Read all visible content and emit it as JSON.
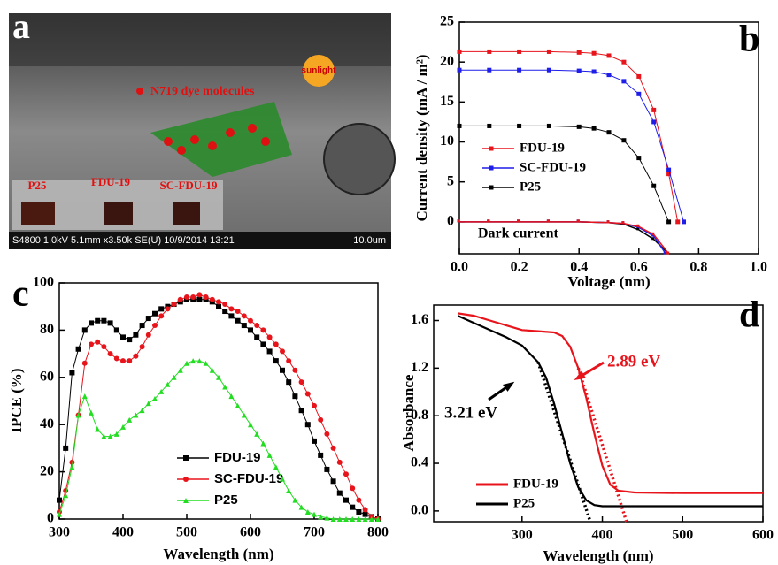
{
  "panel_a": {
    "letter": "a",
    "dye_label": "N719 dye molecules",
    "sun_label": "sunlight",
    "samples": [
      "P25",
      "FDU-19",
      "SC-FDU-19"
    ],
    "footer": "S4800 1.0kV 5.1mm x3.50k SE(U) 10/9/2014 13:21",
    "scale": "10.0um"
  },
  "chart_data": [
    {
      "type": "line",
      "letter": "b",
      "y_label": "Current density (mA / m²)",
      "x_label": "Voltage (nm)",
      "xlim": [
        0,
        1
      ],
      "xticks": [
        {
          "value": 0,
          "label": "0.0"
        },
        0.2,
        0.4,
        0.6,
        0.8,
        {
          "value": 1,
          "label": "1.0"
        }
      ],
      "ylim": [
        -4,
        25
      ],
      "yticks": [
        0,
        5,
        10,
        15,
        20,
        25
      ],
      "series": [
        {
          "name": "FDU-19",
          "color": "#e8141b",
          "marker": "square",
          "x": [
            0,
            0.1,
            0.2,
            0.3,
            0.4,
            0.45,
            0.5,
            0.55,
            0.6,
            0.65,
            0.7,
            0.73
          ],
          "values": [
            21.3,
            21.3,
            21.3,
            21.3,
            21.2,
            21.1,
            20.8,
            20.0,
            18.2,
            14.0,
            6.0,
            0
          ]
        },
        {
          "name": "SC-FDU-19",
          "color": "#1e1ee8",
          "marker": "square",
          "x": [
            0,
            0.1,
            0.2,
            0.3,
            0.4,
            0.45,
            0.5,
            0.55,
            0.6,
            0.65,
            0.7,
            0.75
          ],
          "values": [
            19,
            19,
            19,
            19,
            18.9,
            18.8,
            18.4,
            17.6,
            16.0,
            12.5,
            6.5,
            0
          ]
        },
        {
          "name": "P25",
          "color": "#000000",
          "marker": "square",
          "x": [
            0,
            0.1,
            0.2,
            0.3,
            0.4,
            0.45,
            0.5,
            0.55,
            0.6,
            0.65,
            0.7
          ],
          "values": [
            12,
            12,
            12,
            12,
            11.9,
            11.7,
            11.2,
            10.2,
            8.0,
            4.5,
            0
          ]
        }
      ],
      "dark_curves": [
        {
          "color": "#000000",
          "x": [
            0,
            0.1,
            0.2,
            0.3,
            0.4,
            0.5,
            0.55,
            0.6,
            0.65,
            0.7
          ],
          "values": [
            0,
            0,
            0,
            0,
            0,
            -0.1,
            -0.3,
            -1.0,
            -2.2,
            -4
          ]
        },
        {
          "color": "#1e1ee8",
          "x": [
            0,
            0.1,
            0.2,
            0.3,
            0.4,
            0.5,
            0.55,
            0.6,
            0.65,
            0.69
          ],
          "values": [
            0,
            0,
            0,
            0,
            0,
            -0.1,
            -0.2,
            -0.7,
            -1.8,
            -4
          ]
        },
        {
          "color": "#e8141b",
          "x": [
            0,
            0.1,
            0.2,
            0.3,
            0.4,
            0.5,
            0.55,
            0.6,
            0.65,
            0.7
          ],
          "values": [
            0,
            0,
            0,
            0,
            0,
            -0.1,
            -0.2,
            -0.6,
            -1.6,
            -4
          ]
        }
      ],
      "annotation": "Dark  current"
    },
    {
      "type": "line",
      "letter": "c",
      "y_label": "IPCE (%)",
      "x_label": "Wavelength (nm)",
      "xlim": [
        300,
        800
      ],
      "xticks": [
        300,
        400,
        500,
        600,
        700,
        800
      ],
      "ylim": [
        0,
        100
      ],
      "yticks": [
        0,
        20,
        40,
        60,
        80,
        100
      ],
      "x": [
        300,
        310,
        320,
        330,
        340,
        350,
        360,
        370,
        380,
        390,
        400,
        410,
        420,
        430,
        440,
        450,
        460,
        470,
        480,
        490,
        500,
        510,
        520,
        530,
        540,
        550,
        560,
        570,
        580,
        590,
        600,
        610,
        620,
        630,
        640,
        650,
        660,
        670,
        680,
        690,
        700,
        710,
        720,
        730,
        740,
        750,
        760,
        770,
        780,
        790,
        800
      ],
      "series": [
        {
          "name": "FDU-19",
          "color": "#000000",
          "marker": "square",
          "values": [
            8,
            30,
            62,
            72,
            80,
            83,
            84,
            84,
            83,
            80,
            77,
            76,
            78,
            82,
            85,
            87,
            89,
            90,
            91,
            92,
            93,
            93,
            93,
            93,
            92,
            90,
            88,
            86,
            84,
            82,
            80,
            77,
            74,
            71,
            67,
            63,
            58,
            52,
            46,
            40,
            33,
            27,
            21,
            16,
            11,
            8,
            5,
            3,
            2,
            1,
            0
          ]
        },
        {
          "name": "SC-FDU-19",
          "color": "#e8141b",
          "marker": "circle",
          "values": [
            3,
            12,
            24,
            44,
            66,
            74,
            75,
            73,
            70,
            68,
            67,
            67,
            69,
            73,
            78,
            82,
            86,
            89,
            91,
            93,
            94,
            94,
            95,
            94,
            93,
            92,
            91,
            89,
            88,
            86,
            84,
            82,
            80,
            77,
            74,
            71,
            67,
            63,
            58,
            53,
            48,
            42,
            36,
            30,
            24,
            19,
            13,
            8,
            4,
            1,
            0
          ]
        },
        {
          "name": "P25",
          "color": "#22dd22",
          "marker": "triangle",
          "values": [
            2,
            10,
            22,
            44,
            52,
            45,
            38,
            35,
            35,
            36,
            39,
            42,
            44,
            46,
            49,
            51,
            54,
            57,
            60,
            63,
            66,
            67,
            67,
            66,
            63,
            60,
            56,
            52,
            48,
            44,
            40,
            36,
            32,
            27,
            22,
            17,
            12,
            8,
            5,
            3,
            2,
            1,
            0.5,
            0,
            0,
            0,
            0,
            0,
            0,
            0,
            0
          ]
        }
      ]
    },
    {
      "type": "line",
      "letter": "d",
      "y_label": "Absorbance",
      "x_label": "Wavelength (nm)",
      "xlim": [
        190,
        600
      ],
      "xticks": [
        300,
        400,
        500,
        600
      ],
      "ylim": [
        -0.09,
        1.73
      ],
      "yticks": [
        {
          "value": 0,
          "label": "0.0"
        },
        0.4,
        0.8,
        1.2,
        1.6
      ],
      "series": [
        {
          "name": "FDU-19",
          "color": "#e8141b",
          "x": [
            220,
            240,
            260,
            280,
            300,
            320,
            340,
            350,
            360,
            370,
            380,
            390,
            400,
            410,
            420,
            440,
            500,
            550,
            600
          ],
          "values": [
            1.66,
            1.64,
            1.6,
            1.56,
            1.52,
            1.51,
            1.5,
            1.47,
            1.38,
            1.2,
            0.95,
            0.65,
            0.38,
            0.22,
            0.17,
            0.155,
            0.15,
            0.15,
            0.15
          ]
        },
        {
          "name": "P25",
          "color": "#000000",
          "x": [
            220,
            240,
            260,
            280,
            300,
            320,
            330,
            340,
            350,
            360,
            370,
            380,
            390,
            400,
            500,
            600
          ],
          "values": [
            1.64,
            1.58,
            1.52,
            1.46,
            1.39,
            1.25,
            1.12,
            0.9,
            0.65,
            0.4,
            0.2,
            0.09,
            0.05,
            0.04,
            0.04,
            0.04
          ]
        }
      ],
      "fit_lines": [
        {
          "color": "#e8141b",
          "x": [
            370,
            430
          ],
          "values": [
            1.2,
            -0.09
          ]
        },
        {
          "color": "#000000",
          "x": [
            320,
            385
          ],
          "values": [
            1.25,
            -0.09
          ]
        }
      ],
      "annotations": [
        {
          "text": "2.89 eV",
          "color": "#e8141b"
        },
        {
          "text": "3.21 eV",
          "color": "#000000"
        }
      ]
    }
  ]
}
